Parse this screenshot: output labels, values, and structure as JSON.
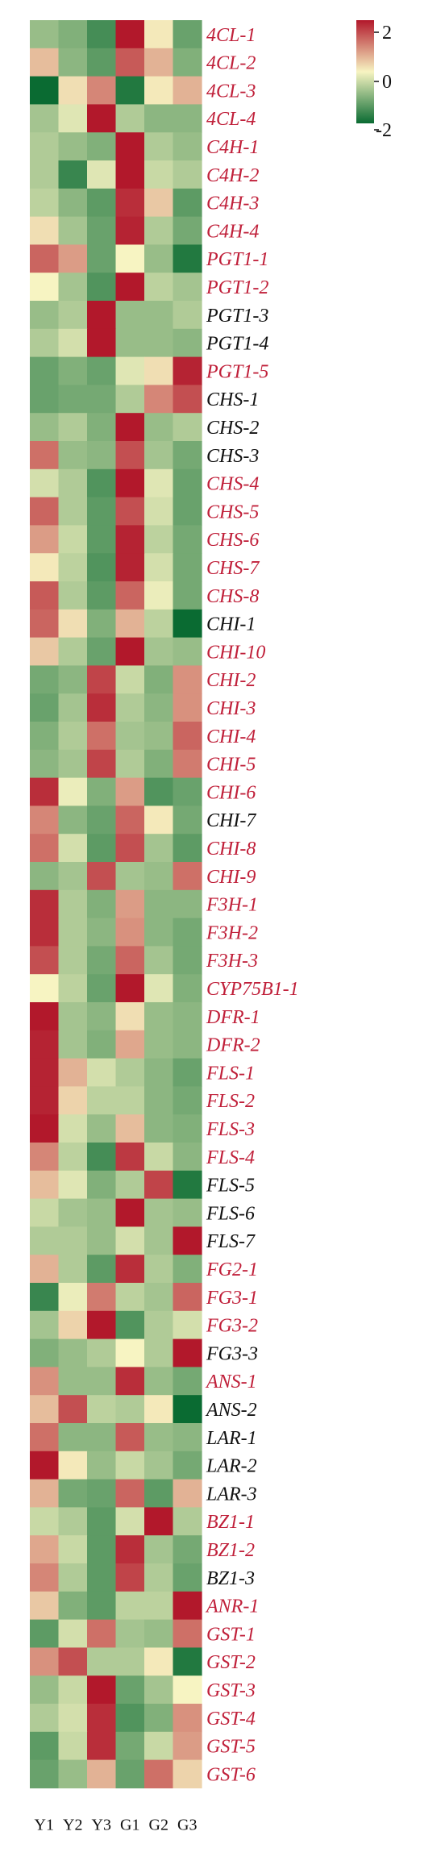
{
  "chart_data": {
    "type": "heatmap",
    "title": "",
    "x": [
      "Y1",
      "Y2",
      "Y3",
      "G1",
      "G2",
      "G3"
    ],
    "colorbar": {
      "ticks": [
        "2",
        "0",
        "-2"
      ],
      "min": -2,
      "max": 2,
      "colors": {
        "high": "#b2182b",
        "mid": "#f7f4c2",
        "low": "#0a6b32"
      }
    },
    "label_colors": {
      "highlighted": "#c0203a",
      "normal": "#111111"
    },
    "rows": [
      {
        "gene": "4CL-1",
        "highlight": true,
        "values": [
          -0.8,
          -1.0,
          -1.5,
          2.0,
          0.1,
          -1.2
        ]
      },
      {
        "gene": "4CL-2",
        "highlight": true,
        "values": [
          0.5,
          -0.9,
          -1.3,
          1.4,
          0.6,
          -1.0
        ]
      },
      {
        "gene": "4CL-3",
        "highlight": true,
        "values": [
          -2.0,
          0.2,
          1.0,
          -1.8,
          0.1,
          0.6
        ]
      },
      {
        "gene": "4CL-4",
        "highlight": true,
        "values": [
          -0.7,
          -0.2,
          2.0,
          -0.6,
          -0.9,
          -0.9
        ]
      },
      {
        "gene": "C4H-1",
        "highlight": true,
        "values": [
          -0.6,
          -0.8,
          -1.0,
          2.0,
          -0.6,
          -0.8
        ]
      },
      {
        "gene": "C4H-2",
        "highlight": true,
        "values": [
          -0.6,
          -1.6,
          -0.2,
          2.0,
          -0.4,
          -0.6
        ]
      },
      {
        "gene": "C4H-3",
        "highlight": true,
        "values": [
          -0.5,
          -0.9,
          -1.3,
          1.8,
          0.4,
          -1.3
        ]
      },
      {
        "gene": "C4H-4",
        "highlight": true,
        "values": [
          0.2,
          -0.7,
          -1.2,
          1.9,
          -0.6,
          -1.1
        ]
      },
      {
        "gene": "PGT1-1",
        "highlight": true,
        "values": [
          1.3,
          0.8,
          -1.2,
          0.0,
          -0.8,
          -1.8
        ]
      },
      {
        "gene": "PGT1-2",
        "highlight": true,
        "values": [
          0.0,
          -0.7,
          -1.4,
          2.0,
          -0.5,
          -0.7
        ]
      },
      {
        "gene": "PGT1-3",
        "highlight": false,
        "values": [
          -0.8,
          -0.6,
          2.0,
          -0.8,
          -0.8,
          -0.6
        ]
      },
      {
        "gene": "PGT1-4",
        "highlight": false,
        "values": [
          -0.6,
          -0.3,
          2.0,
          -0.8,
          -0.8,
          -0.9
        ]
      },
      {
        "gene": "PGT1-5",
        "highlight": true,
        "values": [
          -1.2,
          -1.0,
          -1.2,
          -0.2,
          0.2,
          1.9
        ]
      },
      {
        "gene": "CHS-1",
        "highlight": false,
        "values": [
          -1.2,
          -1.1,
          -1.1,
          -0.6,
          1.0,
          1.5
        ]
      },
      {
        "gene": "CHS-2",
        "highlight": false,
        "values": [
          -0.8,
          -0.6,
          -1.0,
          2.0,
          -0.8,
          -0.6
        ]
      },
      {
        "gene": "CHS-3",
        "highlight": false,
        "values": [
          1.2,
          -0.8,
          -0.9,
          1.5,
          -0.7,
          -1.1
        ]
      },
      {
        "gene": "CHS-4",
        "highlight": true,
        "values": [
          -0.3,
          -0.6,
          -1.4,
          2.0,
          -0.2,
          -1.2
        ]
      },
      {
        "gene": "CHS-5",
        "highlight": true,
        "values": [
          1.3,
          -0.6,
          -1.3,
          1.5,
          -0.3,
          -1.2
        ]
      },
      {
        "gene": "CHS-6",
        "highlight": true,
        "values": [
          0.8,
          -0.4,
          -1.3,
          1.9,
          -0.5,
          -1.1
        ]
      },
      {
        "gene": "CHS-7",
        "highlight": true,
        "values": [
          0.1,
          -0.5,
          -1.4,
          1.9,
          -0.3,
          -1.1
        ]
      },
      {
        "gene": "CHS-8",
        "highlight": true,
        "values": [
          1.4,
          -0.6,
          -1.3,
          1.3,
          -0.1,
          -1.1
        ]
      },
      {
        "gene": "CHI-1",
        "highlight": false,
        "values": [
          1.3,
          0.2,
          -1.0,
          0.6,
          -0.5,
          -2.0
        ]
      },
      {
        "gene": "CHI-10",
        "highlight": true,
        "values": [
          0.4,
          -0.6,
          -1.2,
          2.0,
          -0.7,
          -0.8
        ]
      },
      {
        "gene": "CHI-2",
        "highlight": true,
        "values": [
          -1.1,
          -0.9,
          1.6,
          -0.4,
          -1.0,
          0.9
        ]
      },
      {
        "gene": "CHI-3",
        "highlight": true,
        "values": [
          -1.2,
          -0.7,
          1.8,
          -0.6,
          -0.9,
          0.9
        ]
      },
      {
        "gene": "CHI-4",
        "highlight": true,
        "values": [
          -1.0,
          -0.6,
          1.2,
          -0.7,
          -0.8,
          1.3
        ]
      },
      {
        "gene": "CHI-5",
        "highlight": true,
        "values": [
          -0.9,
          -0.7,
          1.6,
          -0.6,
          -1.0,
          1.1
        ]
      },
      {
        "gene": "CHI-6",
        "highlight": true,
        "values": [
          1.8,
          -0.1,
          -1.0,
          0.8,
          -1.4,
          -1.2
        ]
      },
      {
        "gene": "CHI-7",
        "highlight": false,
        "values": [
          1.0,
          -0.9,
          -1.2,
          1.3,
          0.1,
          -1.1
        ]
      },
      {
        "gene": "CHI-8",
        "highlight": true,
        "values": [
          1.2,
          -0.3,
          -1.3,
          1.5,
          -0.7,
          -1.3
        ]
      },
      {
        "gene": "CHI-9",
        "highlight": true,
        "values": [
          -0.9,
          -0.7,
          1.5,
          -0.7,
          -0.8,
          1.2
        ]
      },
      {
        "gene": "F3H-1",
        "highlight": true,
        "values": [
          1.8,
          -0.6,
          -1.0,
          0.8,
          -0.9,
          -0.9
        ]
      },
      {
        "gene": "F3H-2",
        "highlight": true,
        "values": [
          1.8,
          -0.6,
          -0.9,
          0.9,
          -0.9,
          -1.1
        ]
      },
      {
        "gene": "F3H-3",
        "highlight": true,
        "values": [
          1.5,
          -0.6,
          -1.1,
          1.3,
          -0.7,
          -1.1
        ]
      },
      {
        "gene": "CYP75B1-1",
        "highlight": true,
        "values": [
          0.0,
          -0.5,
          -1.2,
          2.0,
          -0.2,
          -1.0
        ]
      },
      {
        "gene": "DFR-1",
        "highlight": true,
        "values": [
          2.0,
          -0.7,
          -0.9,
          0.2,
          -0.8,
          -0.9
        ]
      },
      {
        "gene": "DFR-2",
        "highlight": true,
        "values": [
          1.9,
          -0.7,
          -1.0,
          0.7,
          -0.8,
          -0.9
        ]
      },
      {
        "gene": "FLS-1",
        "highlight": true,
        "values": [
          1.9,
          0.6,
          -0.3,
          -0.6,
          -0.9,
          -1.2
        ]
      },
      {
        "gene": "FLS-2",
        "highlight": true,
        "values": [
          1.9,
          0.3,
          -0.5,
          -0.5,
          -0.9,
          -1.1
        ]
      },
      {
        "gene": "FLS-3",
        "highlight": true,
        "values": [
          2.0,
          -0.3,
          -0.8,
          0.5,
          -0.9,
          -1.0
        ]
      },
      {
        "gene": "FLS-4",
        "highlight": true,
        "values": [
          1.0,
          -0.5,
          -1.5,
          1.7,
          -0.4,
          -0.9
        ]
      },
      {
        "gene": "FLS-5",
        "highlight": false,
        "values": [
          0.5,
          -0.2,
          -1.0,
          -0.6,
          1.6,
          -1.8
        ]
      },
      {
        "gene": "FLS-6",
        "highlight": false,
        "values": [
          -0.4,
          -0.7,
          -0.8,
          2.0,
          -0.7,
          -0.8
        ]
      },
      {
        "gene": "FLS-7",
        "highlight": false,
        "values": [
          -0.6,
          -0.6,
          -0.8,
          -0.3,
          -0.7,
          2.0
        ]
      },
      {
        "gene": "FG2-1",
        "highlight": true,
        "values": [
          0.6,
          -0.6,
          -1.3,
          1.8,
          -0.6,
          -1.0
        ]
      },
      {
        "gene": "FG3-1",
        "highlight": true,
        "values": [
          -1.6,
          -0.1,
          1.1,
          -0.5,
          -0.7,
          1.3
        ]
      },
      {
        "gene": "FG3-2",
        "highlight": true,
        "values": [
          -0.7,
          0.3,
          2.0,
          -1.4,
          -0.6,
          -0.3
        ]
      },
      {
        "gene": "FG3-3",
        "highlight": false,
        "values": [
          -1.0,
          -0.8,
          -0.6,
          0.0,
          -0.6,
          2.0
        ]
      },
      {
        "gene": "ANS-1",
        "highlight": true,
        "values": [
          0.9,
          -0.8,
          -0.8,
          1.8,
          -0.8,
          -1.1
        ]
      },
      {
        "gene": "ANS-2",
        "highlight": false,
        "values": [
          0.5,
          1.5,
          -0.5,
          -0.6,
          0.1,
          -2.0
        ]
      },
      {
        "gene": "LAR-1",
        "highlight": false,
        "values": [
          1.2,
          -0.9,
          -0.9,
          1.4,
          -0.8,
          -0.9
        ]
      },
      {
        "gene": "LAR-2",
        "highlight": false,
        "values": [
          2.0,
          0.1,
          -0.8,
          -0.4,
          -0.7,
          -1.1
        ]
      },
      {
        "gene": "LAR-3",
        "highlight": false,
        "values": [
          0.6,
          -1.1,
          -1.2,
          1.3,
          -1.3,
          0.6
        ]
      },
      {
        "gene": "BZ1-1",
        "highlight": true,
        "values": [
          -0.4,
          -0.6,
          -1.3,
          -0.3,
          2.0,
          -0.6
        ]
      },
      {
        "gene": "BZ1-2",
        "highlight": true,
        "values": [
          0.7,
          -0.4,
          -1.3,
          1.8,
          -0.7,
          -1.1
        ]
      },
      {
        "gene": "BZ1-3",
        "highlight": false,
        "values": [
          1.0,
          -0.6,
          -1.3,
          1.6,
          -0.6,
          -1.2
        ]
      },
      {
        "gene": "ANR-1",
        "highlight": true,
        "values": [
          0.4,
          -1.0,
          -1.3,
          -0.5,
          -0.5,
          2.0
        ]
      },
      {
        "gene": "GST-1",
        "highlight": true,
        "values": [
          -1.3,
          -0.3,
          1.2,
          -0.7,
          -0.8,
          1.2
        ]
      },
      {
        "gene": "GST-2",
        "highlight": true,
        "values": [
          0.9,
          1.5,
          -0.6,
          -0.6,
          0.1,
          -1.8
        ]
      },
      {
        "gene": "GST-3",
        "highlight": true,
        "values": [
          -0.8,
          -0.4,
          2.0,
          -1.2,
          -0.7,
          0.0
        ]
      },
      {
        "gene": "GST-4",
        "highlight": true,
        "values": [
          -0.6,
          -0.3,
          1.8,
          -1.4,
          -1.0,
          0.9
        ]
      },
      {
        "gene": "GST-5",
        "highlight": true,
        "values": [
          -1.3,
          -0.4,
          1.8,
          -1.1,
          -0.4,
          0.8
        ]
      },
      {
        "gene": "GST-6",
        "highlight": true,
        "values": [
          -1.2,
          -0.8,
          0.6,
          -1.2,
          1.2,
          0.3
        ]
      }
    ]
  }
}
